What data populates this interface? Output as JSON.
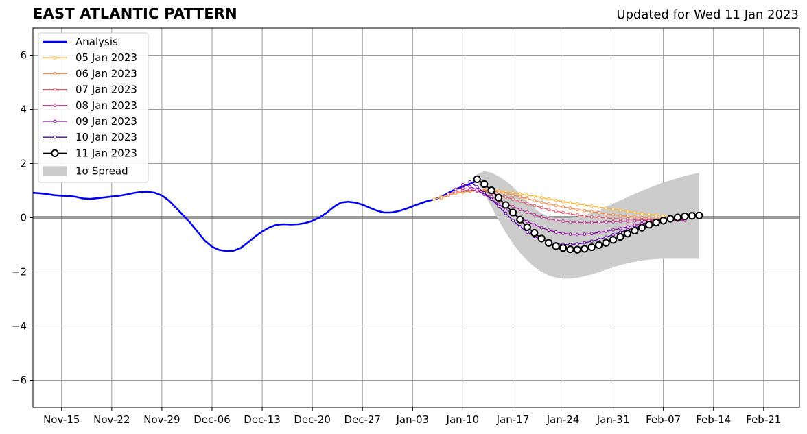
{
  "chart_data": {
    "type": "line",
    "title": "EAST ATLANTIC PATTERN",
    "subtitle": "Updated for Wed 11 Jan 2023",
    "xlabel": "",
    "ylabel": "",
    "xlim": [
      "2022-11-11",
      "2023-02-26"
    ],
    "ylim": [
      -7,
      7
    ],
    "yticks": [
      6,
      4,
      2,
      0,
      -2,
      -4,
      -6
    ],
    "ytick_labels": [
      "6",
      "4",
      "2",
      "0",
      "−2",
      "−4",
      "−6"
    ],
    "xticks": [
      "2022-11-15",
      "2022-11-22",
      "2022-11-29",
      "2022-12-06",
      "2022-12-13",
      "2022-12-20",
      "2022-12-27",
      "2023-01-03",
      "2023-01-10",
      "2023-01-17",
      "2023-01-24",
      "2023-01-31",
      "2023-02-07",
      "2023-02-14",
      "2023-02-21"
    ],
    "xtick_labels": [
      "Nov-15",
      "Nov-22",
      "Nov-29",
      "Dec-06",
      "Dec-13",
      "Dec-20",
      "Dec-27",
      "Jan-03",
      "Jan-10",
      "Jan-17",
      "Jan-24",
      "Jan-31",
      "Feb-07",
      "Feb-14",
      "Feb-21"
    ],
    "grid": true,
    "legend_position": "top-left",
    "analysis": {
      "name": "Analysis",
      "color": "#0000ee",
      "start": "2022-11-11",
      "values": [
        0.92,
        0.9,
        0.87,
        0.83,
        0.81,
        0.8,
        0.77,
        0.71,
        0.69,
        0.72,
        0.75,
        0.78,
        0.81,
        0.85,
        0.91,
        0.95,
        0.96,
        0.92,
        0.82,
        0.63,
        0.36,
        0.08,
        -0.2,
        -0.53,
        -0.85,
        -1.07,
        -1.19,
        -1.23,
        -1.22,
        -1.12,
        -0.92,
        -0.7,
        -0.51,
        -0.36,
        -0.26,
        -0.24,
        -0.25,
        -0.24,
        -0.2,
        -0.12,
        0.01,
        0.18,
        0.4,
        0.56,
        0.59,
        0.56,
        0.48,
        0.37,
        0.26,
        0.19,
        0.19,
        0.24,
        0.32,
        0.42,
        0.52,
        0.61,
        0.67,
        0.77,
        0.92,
        1.05,
        1.15,
        1.25,
        1.36
      ]
    },
    "spread": {
      "name": "1σ Spread",
      "color": "#cccccc",
      "start": "2023-01-12",
      "upper": [
        1.6,
        1.72,
        1.66,
        1.53,
        1.36,
        1.14,
        0.88,
        0.6,
        0.35,
        0.16,
        0.04,
        -0.02,
        -0.03,
        -0.01,
        0.03,
        0.1,
        0.18,
        0.28,
        0.4,
        0.52,
        0.64,
        0.76,
        0.88,
        0.99,
        1.1,
        1.2,
        1.3,
        1.38,
        1.46,
        1.54,
        1.6,
        1.66
      ],
      "lower": [
        1.32,
        0.9,
        0.4,
        -0.1,
        -0.55,
        -0.95,
        -1.3,
        -1.58,
        -1.82,
        -2.0,
        -2.13,
        -2.21,
        -2.25,
        -2.25,
        -2.22,
        -2.16,
        -2.09,
        -2.01,
        -1.92,
        -1.83,
        -1.75,
        -1.68,
        -1.63,
        -1.58,
        -1.55,
        -1.53,
        -1.52,
        -1.52,
        -1.52,
        -1.52,
        -1.52,
        -1.52
      ]
    },
    "series": [
      {
        "name": "05 Jan 2023",
        "color": "#fdb42f",
        "start": "2023-01-06",
        "values": [
          0.68,
          0.76,
          0.84,
          0.9,
          0.94,
          0.97,
          1.0,
          1.02,
          1.01,
          0.99,
          0.96,
          0.92,
          0.88,
          0.83,
          0.79,
          0.74,
          0.69,
          0.64,
          0.59,
          0.55,
          0.51,
          0.47,
          0.43,
          0.39,
          0.35,
          0.31,
          0.27,
          0.23,
          0.19,
          0.15,
          0.12,
          0.09,
          0.06,
          0.03,
          0.0,
          -0.02
        ]
      },
      {
        "name": "06 Jan 2023",
        "color": "#f48849",
        "start": "2023-01-07",
        "values": [
          0.72,
          0.82,
          0.9,
          0.95,
          0.98,
          1.0,
          1.0,
          0.98,
          0.94,
          0.89,
          0.83,
          0.77,
          0.7,
          0.63,
          0.57,
          0.51,
          0.45,
          0.4,
          0.35,
          0.3,
          0.26,
          0.22,
          0.18,
          0.14,
          0.11,
          0.08,
          0.05,
          0.03,
          0.01,
          -0.01,
          -0.02,
          -0.03,
          -0.04,
          -0.05,
          -0.06
        ]
      },
      {
        "name": "07 Jan 2023",
        "color": "#db5c68",
        "start": "2023-01-08",
        "values": [
          0.88,
          0.96,
          1.0,
          1.02,
          1.01,
          0.97,
          0.91,
          0.84,
          0.76,
          0.68,
          0.6,
          0.52,
          0.44,
          0.37,
          0.3,
          0.24,
          0.19,
          0.14,
          0.1,
          0.06,
          0.03,
          0.01,
          -0.01,
          -0.03,
          -0.04,
          -0.05,
          -0.06,
          -0.07,
          -0.08,
          -0.08,
          -0.09,
          -0.09,
          -0.1,
          -0.1
        ]
      },
      {
        "name": "08 Jan 2023",
        "color": "#b83289",
        "start": "2023-01-09",
        "values": [
          1.05,
          1.08,
          1.05,
          0.98,
          0.88,
          0.77,
          0.65,
          0.53,
          0.41,
          0.3,
          0.2,
          0.11,
          0.03,
          -0.04,
          -0.09,
          -0.13,
          -0.16,
          -0.17,
          -0.18,
          -0.18,
          -0.17,
          -0.16,
          -0.15,
          -0.14,
          -0.13,
          -0.12,
          -0.11,
          -0.11,
          -0.1,
          -0.1,
          -0.1,
          -0.1,
          -0.1
        ]
      },
      {
        "name": "09 Jan 2023",
        "color": "#8b0aa5",
        "start": "2023-01-10",
        "values": [
          1.22,
          1.15,
          1.02,
          0.86,
          0.68,
          0.5,
          0.32,
          0.15,
          0.0,
          -0.14,
          -0.26,
          -0.37,
          -0.46,
          -0.53,
          -0.58,
          -0.61,
          -0.62,
          -0.61,
          -0.59,
          -0.55,
          -0.5,
          -0.45,
          -0.4,
          -0.34,
          -0.28,
          -0.22,
          -0.17,
          -0.13,
          -0.1,
          -0.08,
          -0.07,
          -0.07
        ]
      },
      {
        "name": "10 Jan 2023",
        "color": "#5402a3",
        "start": "2023-01-11",
        "values": [
          1.32,
          1.14,
          0.92,
          0.68,
          0.42,
          0.16,
          -0.1,
          -0.33,
          -0.53,
          -0.69,
          -0.81,
          -0.9,
          -0.96,
          -0.99,
          -0.99,
          -0.97,
          -0.93,
          -0.87,
          -0.8,
          -0.72,
          -0.63,
          -0.54,
          -0.45,
          -0.37,
          -0.29,
          -0.22,
          -0.16,
          -0.11,
          -0.07,
          -0.04,
          -0.02
        ]
      },
      {
        "name": "11 Jan 2023",
        "color": "#000000",
        "start": "2023-01-12",
        "values": [
          1.42,
          1.24,
          1.01,
          0.74,
          0.47,
          0.19,
          -0.07,
          -0.35,
          -0.56,
          -0.77,
          -0.93,
          -1.05,
          -1.12,
          -1.17,
          -1.18,
          -1.15,
          -1.09,
          -1.01,
          -0.93,
          -0.82,
          -0.71,
          -0.59,
          -0.48,
          -0.37,
          -0.26,
          -0.18,
          -0.11,
          -0.04,
          0.01,
          0.05,
          0.07,
          0.08
        ]
      }
    ]
  }
}
